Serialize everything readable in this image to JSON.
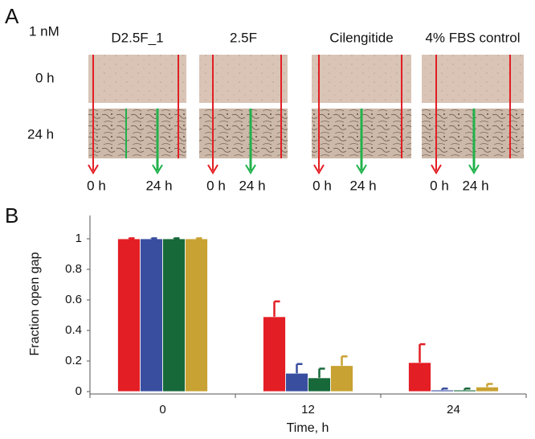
{
  "panel_a": {
    "label": "A",
    "concentration": "1 nM",
    "columns": [
      "D2.5F_1",
      "2.5F",
      "Cilengitide",
      "4% FBS control"
    ],
    "rows": [
      "0 h",
      "24 h"
    ],
    "arrow_labels": [
      [
        "0 h",
        "24 h"
      ],
      [
        "0 h",
        "24 h"
      ],
      [
        "0 h",
        "24 h"
      ],
      [
        "0 h",
        "24 h"
      ]
    ]
  },
  "chart_data": {
    "type": "bar",
    "label": "B",
    "ylabel": "Fraction open gap",
    "xlabel": "Time, h",
    "categories": [
      "0",
      "12",
      "24"
    ],
    "series": [
      {
        "color": "#e31e24",
        "values": [
          1,
          0.49,
          0.19
        ],
        "errors": [
          0.003,
          0.1,
          0.12
        ]
      },
      {
        "color": "#3a4ea0",
        "values": [
          1,
          0.12,
          0.01
        ],
        "errors": [
          0.003,
          0.06,
          0.01
        ]
      },
      {
        "color": "#17693a",
        "values": [
          1,
          0.09,
          0.01
        ],
        "errors": [
          0.003,
          0.06,
          0.01
        ]
      },
      {
        "color": "#c8a232",
        "values": [
          1,
          0.17,
          0.03
        ],
        "errors": [
          0.003,
          0.06,
          0.02
        ]
      }
    ],
    "ylim": [
      0,
      1.15
    ],
    "yticks": [
      0,
      0.2,
      0.4,
      0.6,
      0.8,
      1
    ]
  }
}
